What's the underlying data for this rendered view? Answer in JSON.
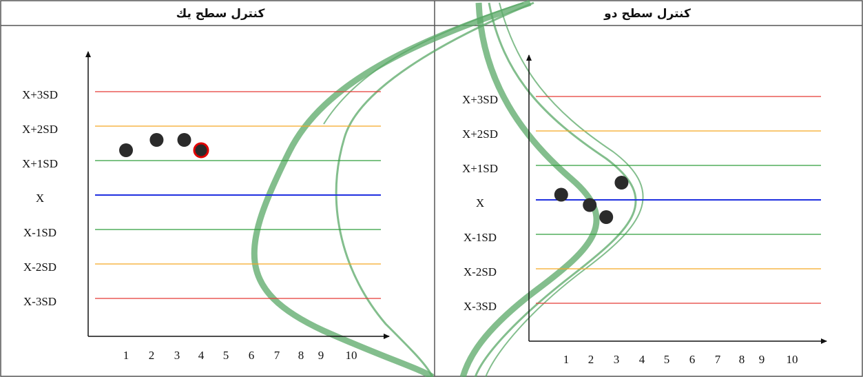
{
  "panels": [
    {
      "title": "كنترل سطح يك",
      "levels": [
        "X+3SD",
        "X+2SD",
        "X+1SD",
        "X",
        "X-1SD",
        "X-2SD",
        "X-3SD"
      ],
      "xticks": [
        1,
        2,
        3,
        4,
        5,
        6,
        7,
        8,
        9,
        10
      ],
      "points": [
        {
          "x": 1,
          "y": 1.3
        },
        {
          "x": 2.2,
          "y": 1.6
        },
        {
          "x": 3.3,
          "y": 1.6
        },
        {
          "x": 4,
          "y": 1.3,
          "highlighted": true
        }
      ]
    },
    {
      "title": "كنترل سطح دو",
      "levels": [
        "X+3SD",
        "X+2SD",
        "X+1SD",
        "X",
        "X-1SD",
        "X-2SD",
        "X-3SD"
      ],
      "xticks": [
        1,
        2,
        3,
        4,
        5,
        6,
        7,
        8,
        9,
        10
      ],
      "points": [
        {
          "x": 0.8,
          "y": 0.15
        },
        {
          "x": 1.95,
          "y": -0.15
        },
        {
          "x": 2.6,
          "y": -0.5
        },
        {
          "x": 3.2,
          "y": 0.5
        }
      ]
    }
  ]
}
